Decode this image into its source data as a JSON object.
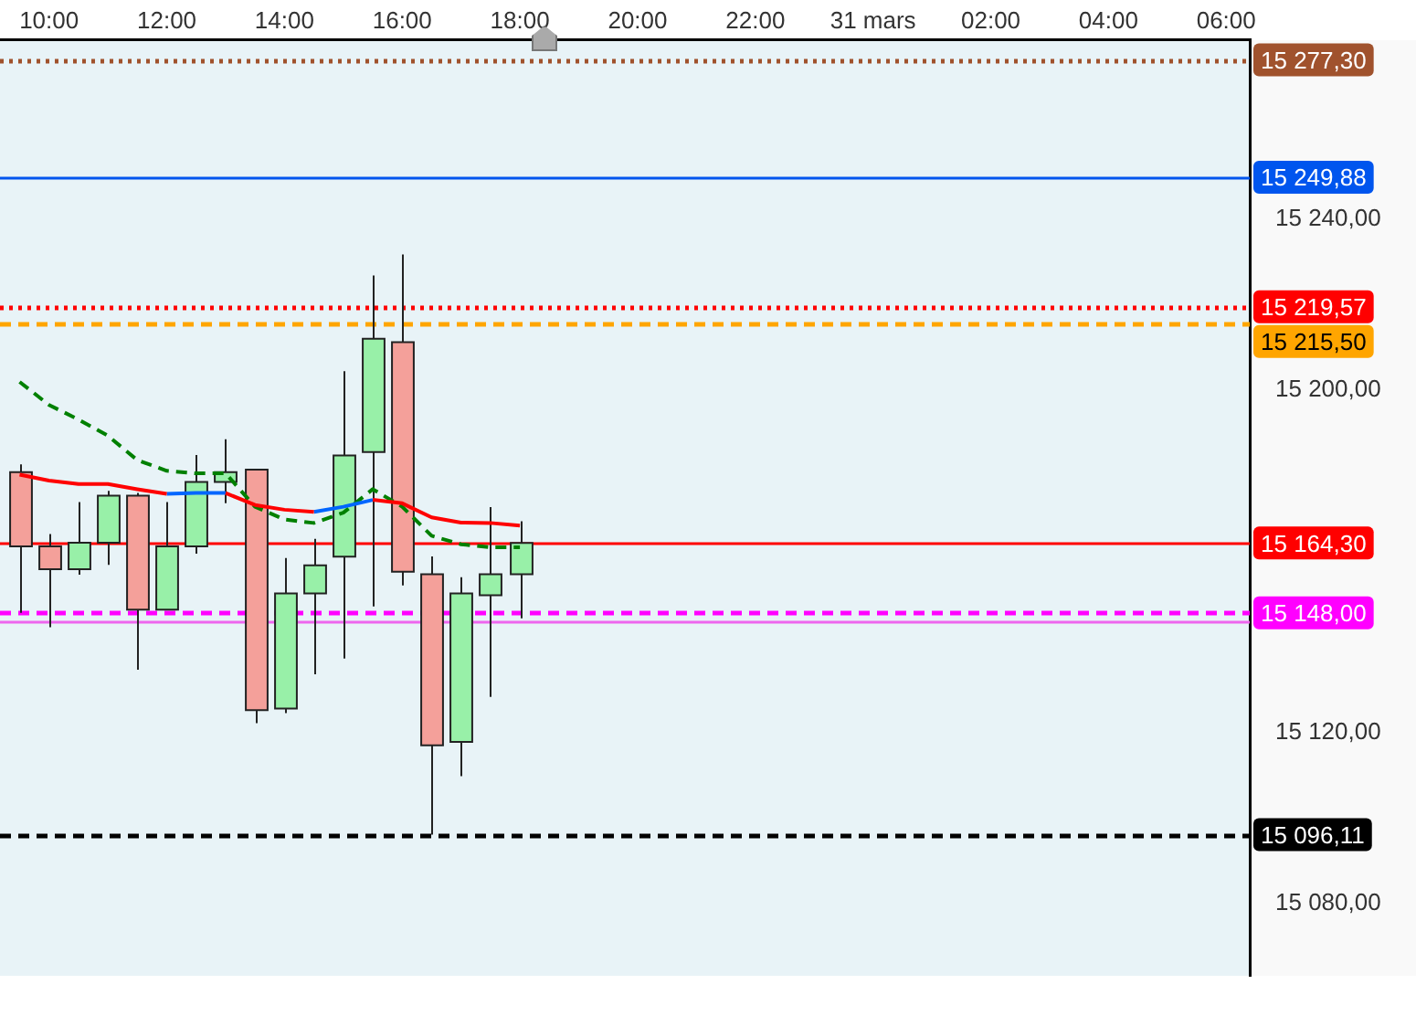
{
  "chart_data": {
    "type": "candlestick",
    "x": [
      "--03-30T09:30",
      "--03-30T10:00",
      "--03-30T10:30",
      "--03-30T11:00",
      "--03-30T11:30",
      "--03-30T12:00",
      "--03-30T12:30",
      "--03-30T13:00",
      "--03-30T13:30",
      "--03-30T14:00",
      "--03-30T14:30",
      "--03-30T15:00",
      "--03-30T15:30",
      "--03-30T16:00",
      "--03-30T16:30",
      "--03-30T17:00",
      "--03-30T17:30",
      "--03-30T18:00"
    ],
    "ohlc": [
      [
        15180.9,
        15182.7,
        15148.0,
        15163.5
      ],
      [
        15163.5,
        15166.4,
        15144.6,
        15158.2
      ],
      [
        15158.2,
        15173.9,
        15156.9,
        15164.4
      ],
      [
        15164.4,
        15176.5,
        15159.2,
        15175.4
      ],
      [
        15175.4,
        15176.0,
        15134.7,
        15148.7
      ],
      [
        15148.7,
        15173.9,
        15148.7,
        15163.5
      ],
      [
        15163.5,
        15184.9,
        15161.8,
        15178.6
      ],
      [
        15178.6,
        15188.6,
        15173.6,
        15180.9
      ],
      [
        15181.5,
        15181.5,
        15122.2,
        15125.2
      ],
      [
        15125.6,
        15160.8,
        15124.5,
        15152.5
      ],
      [
        15152.5,
        15165.3,
        15133.6,
        15159.1
      ],
      [
        15161.1,
        15204.5,
        15137.3,
        15184.8
      ],
      [
        15185.6,
        15226.9,
        15149.5,
        15212.1
      ],
      [
        15211.3,
        15231.8,
        15154.4,
        15157.6
      ],
      [
        15157.0,
        15161.2,
        15096.1,
        15117.0
      ],
      [
        15117.8,
        15156.3,
        15109.8,
        15152.5
      ],
      [
        15152.1,
        15172.7,
        15128.3,
        15157.0
      ],
      [
        15157.0,
        15169.4,
        15146.7,
        15164.3
      ]
    ],
    "colors": [
      "#f4a09a",
      "#f4a09a",
      "#98f0a8",
      "#98f0a8",
      "#f4a09a",
      "#98f0a8",
      "#98f0a8",
      "#98f0a8",
      "#f4a09a",
      "#98f0a8",
      "#98f0a8",
      "#98f0a8",
      "#98f0a8",
      "#f4a09a",
      "#f4a09a",
      "#98f0a8",
      "#98f0a8",
      "#98f0a8"
    ],
    "series": [
      {
        "type": "line",
        "color": "#ff0000",
        "line_style": "solid",
        "values": [
          15180.3,
          15178.9,
          15178.1,
          15178.1,
          15176.9,
          15175.8,
          null,
          15176.0,
          15173.2,
          15172.1,
          15171.6,
          null,
          15174.4,
          15173.6,
          15170.3,
          15169.1,
          15169.0,
          15168.4
        ]
      },
      {
        "type": "line",
        "color": "#0066ff",
        "line_style": "solid",
        "values": [
          null,
          null,
          null,
          null,
          null,
          15175.8,
          15176.0,
          15176.0,
          null,
          null,
          15171.6,
          15172.8,
          15174.4,
          null,
          null,
          null,
          null,
          null
        ]
      },
      {
        "type": "line",
        "color": "#008000",
        "line_style": "dashed",
        "values": [
          15202.0,
          15196.6,
          15193.2,
          15189.4,
          15183.7,
          15181.2,
          15180.6,
          15180.6,
          15172.8,
          15169.8,
          15169.0,
          15171.4,
          15176.9,
          15172.8,
          15166.0,
          15164.0,
          15163.3,
          15163.3
        ]
      }
    ],
    "xlim": [
      "--03-30T09:10",
      "--03-31T06:24"
    ],
    "xticks": [
      {
        "value": "--03-30T10:00",
        "label": "10:00"
      },
      {
        "value": "--03-30T12:00",
        "label": "12:00"
      },
      {
        "value": "--03-30T14:00",
        "label": "14:00"
      },
      {
        "value": "--03-30T16:00",
        "label": "16:00"
      },
      {
        "value": "--03-30T18:00",
        "label": "18:00"
      },
      {
        "value": "--03-30T20:00",
        "label": "20:00"
      },
      {
        "value": "--03-30T22:00",
        "label": "22:00"
      },
      {
        "value": "--03-31",
        "label": "31 mars"
      },
      {
        "value": "--03-31T02:00",
        "label": "02:00"
      },
      {
        "value": "--03-31T04:00",
        "label": "04:00"
      },
      {
        "value": "--03-31T06:00",
        "label": "06:00"
      }
    ],
    "ylim": [
      15063,
      15282
    ],
    "yticks": [
      {
        "value": 15080,
        "label": "15 080,00"
      },
      {
        "value": 15120,
        "label": "15 120,00"
      },
      {
        "value": 15200,
        "label": "15 200,00"
      },
      {
        "value": 15240,
        "label": "15 240,00"
      }
    ],
    "ref_lines": [
      {
        "axis": "y",
        "value": 15277.3,
        "label": "15 277,30",
        "color": "#a0522d",
        "line_style": "dotted"
      },
      {
        "axis": "y",
        "value": 15249.88,
        "label": "15 249,88",
        "color": "#0055ee",
        "line_style": "solid"
      },
      {
        "axis": "y",
        "value": 15215.5,
        "label": "15 215,50",
        "color": "#ffa500",
        "line_style": "dashed"
      },
      {
        "axis": "y",
        "value": 15219.57,
        "label": "15 219,57",
        "color": "#ff0000",
        "line_style": "dotted"
      },
      {
        "axis": "y",
        "value": 15146.0,
        "color": "#ee66ee",
        "line_style": "solid"
      },
      {
        "axis": "y",
        "value": 15148.0,
        "label": "15 148,00",
        "color": "#ff00ff",
        "line_style": "dashed"
      },
      {
        "axis": "y",
        "value": 15164.3,
        "label": "15 164,30",
        "color": "#ff0000",
        "line_style": "solid"
      },
      {
        "axis": "y",
        "value": 15096.11,
        "label": "15 096,11",
        "color": "#000000",
        "line_style": "dashed"
      }
    ],
    "grid": false,
    "legend": false
  }
}
